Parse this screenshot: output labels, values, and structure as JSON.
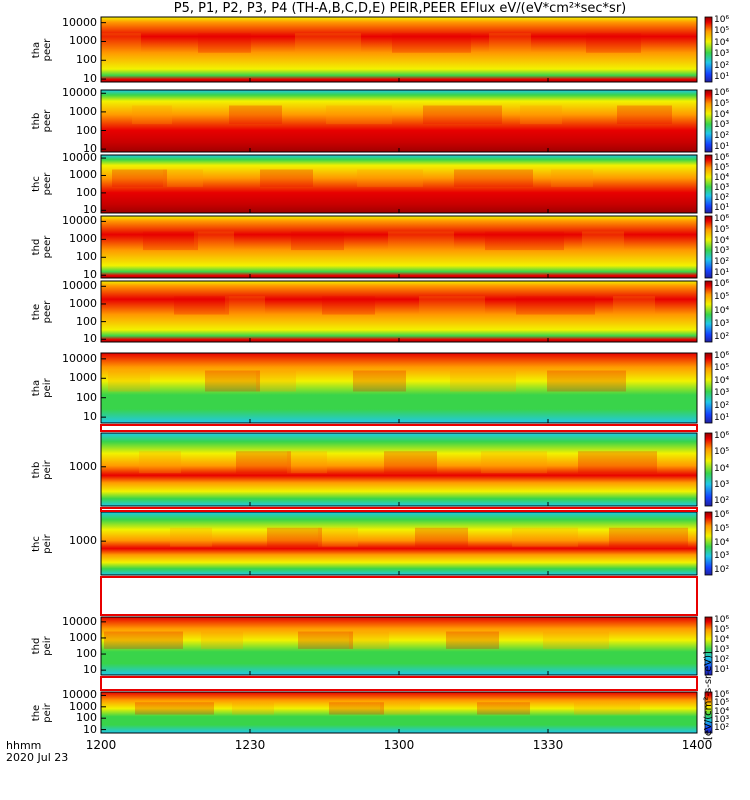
{
  "title": "P5, P1, P2, P3, P4 (TH-A,B,C,D,E) PEIR,PEER EFlux eV/(eV*cm²*sec*sr)",
  "x_label_line1": "hhmm",
  "x_label_line2": "2020 Jul 23",
  "colorbar_unit_label": "[eV/(cm²-s-sr-eV)]",
  "colors": {
    "red": "#e80000",
    "orange": "#ff9900",
    "yellow": "#f2f200",
    "green": "#39d44a",
    "cyan": "#20c8e8",
    "blue": "#1440ff",
    "background": "#ffffff"
  },
  "chart_data": {
    "type": "heatmap",
    "x_axis": {
      "label": "hhmm",
      "date": "2020 Jul 23",
      "range_hhmm": [
        1200,
        1400
      ],
      "ticks": [
        "1200",
        "1230",
        "1300",
        "1330",
        "1400"
      ]
    },
    "y_scale": "log",
    "panels": [
      {
        "id": "tha_peer",
        "probe": "tha",
        "species": "peer",
        "yrange": [
          7,
          20000
        ],
        "yticks": [
          "10000",
          "1000",
          "100",
          "10"
        ],
        "cbar_ticks": [
          "10⁶",
          "10⁵",
          "10⁴",
          "10³",
          "10²",
          "10¹"
        ],
        "profile": "electron_hot"
      },
      {
        "id": "thb_peer",
        "probe": "thb",
        "species": "peer",
        "yrange": [
          7,
          15000
        ],
        "yticks": [
          "10000",
          "1000",
          "100",
          "10"
        ],
        "cbar_ticks": [
          "10⁶",
          "10⁵",
          "10⁴",
          "10³",
          "10²",
          "10¹"
        ],
        "profile": "electron_cold"
      },
      {
        "id": "thc_peer",
        "probe": "thc",
        "species": "peer",
        "yrange": [
          7,
          15000
        ],
        "yticks": [
          "10000",
          "1000",
          "100",
          "10"
        ],
        "cbar_ticks": [
          "10⁶",
          "10⁵",
          "10⁴",
          "10³",
          "10²",
          "10¹"
        ],
        "profile": "electron_cold"
      },
      {
        "id": "thd_peer",
        "probe": "thd",
        "species": "peer",
        "yrange": [
          7,
          20000
        ],
        "yticks": [
          "10000",
          "1000",
          "100",
          "10"
        ],
        "cbar_ticks": [
          "10⁶",
          "10⁵",
          "10⁴",
          "10³",
          "10²",
          "10¹"
        ],
        "profile": "electron_hot"
      },
      {
        "id": "the_peer",
        "probe": "the",
        "species": "peer",
        "yrange": [
          7,
          20000
        ],
        "yticks": [
          "10000",
          "1000",
          "100",
          "10"
        ],
        "cbar_ticks": [
          "10⁶",
          "10⁵",
          "10⁴",
          "10³",
          "10²"
        ],
        "profile": "electron_hot"
      },
      {
        "id": "tha_peir",
        "probe": "tha",
        "species": "peir",
        "yrange": [
          5,
          20000
        ],
        "yticks": [
          "10000",
          "1000",
          "100",
          "10"
        ],
        "cbar_ticks": [
          "10⁶",
          "10⁵",
          "10⁴",
          "10³",
          "10²",
          "10¹"
        ],
        "profile": "ion_hot"
      },
      {
        "id": "thb_peir",
        "probe": "thb",
        "species": "peir",
        "yrange": [
          200,
          4000
        ],
        "yticks": [
          "1000"
        ],
        "cbar_ticks": [
          "10⁶",
          "10⁵",
          "10⁴",
          "10³",
          "10²"
        ],
        "profile": "ion_cold"
      },
      {
        "id": "thc_peir",
        "probe": "thc",
        "species": "peir",
        "yrange": [
          200,
          4000
        ],
        "yticks": [
          "1000"
        ],
        "cbar_ticks": [
          "10⁶",
          "10⁵",
          "10⁴",
          "10³",
          "10²"
        ],
        "profile": "ion_cold"
      },
      {
        "id": "thd_peir",
        "probe": "thd",
        "species": "peir",
        "yrange": [
          5,
          20000
        ],
        "yticks": [
          "10000",
          "1000",
          "100",
          "10"
        ],
        "cbar_ticks": [
          "10⁶",
          "10⁵",
          "10⁴",
          "10³",
          "10²",
          "10¹"
        ],
        "profile": "ion_hot"
      },
      {
        "id": "the_peir",
        "probe": "the",
        "species": "peir",
        "yrange": [
          5,
          20000
        ],
        "yticks": [
          "10000",
          "1000",
          "100",
          "10"
        ],
        "cbar_ticks": [
          "10⁶",
          "10⁵",
          "10⁴",
          "10³",
          "10²"
        ],
        "profile": "ion_hot"
      }
    ]
  }
}
